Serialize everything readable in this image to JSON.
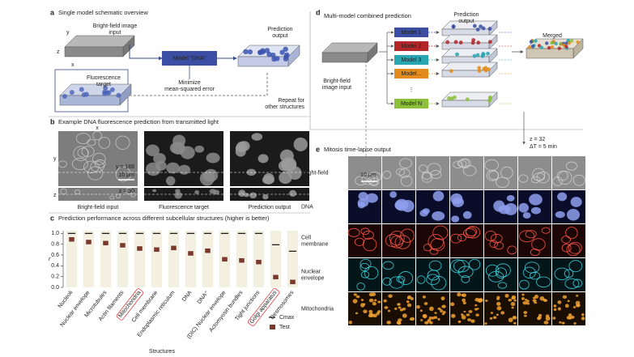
{
  "panel_a": {
    "letter": "a",
    "title": "Single model schematic overview",
    "axis_y": "y",
    "axis_z": "z",
    "axis_x": "x",
    "bright_field_label": [
      "Bright-field image",
      "input"
    ],
    "fluorescence_label": [
      "Fluorescence",
      "target"
    ],
    "model": "Model “DNA”",
    "loss": [
      "Minimize",
      "mean-squared error"
    ],
    "prediction_label": [
      "Prediction",
      "output"
    ],
    "repeat": [
      "Repeat for",
      "other structures"
    ]
  },
  "panel_b": {
    "letter": "b",
    "title": "Example DNA fluorescence prediction from transmitted light",
    "axis_x": "x",
    "axis_y": "y",
    "axis_z": "z",
    "y_slice": "y = 168",
    "scale": "10 μm",
    "z_slice": "z = 30",
    "captions": [
      "Bright-field input",
      "Fluorescence target",
      "Prediction output"
    ]
  },
  "panel_c": {
    "letter": "c"
  },
  "chart_data": {
    "type": "box",
    "title": "Prediction performance across different subcellular structures (higher is better)",
    "x_label": "Structures",
    "y_label": "r",
    "categories": [
      "Nucleoli",
      "Nuclear envelope",
      "Microtubules",
      "Actin filaments",
      "Mitochondria",
      "Cell membrane",
      "Endoplasmic reticulum",
      "DNA",
      "DNA⁺",
      "(DIC) Nuclear envelope",
      "Actomyosin bundles",
      "Tight junctions",
      "Golgi apparatus",
      "Desmosomes"
    ],
    "series": [
      {
        "name": "Cmax",
        "color": "#111111",
        "values": [
          1.0,
          1.0,
          1.0,
          1.0,
          1.0,
          1.0,
          1.0,
          1.0,
          1.0,
          1.0,
          1.0,
          1.0,
          0.79,
          0.67
        ]
      },
      {
        "name": "Test",
        "color": "#7b3a2c",
        "values": [
          0.89,
          0.84,
          0.82,
          0.78,
          0.72,
          0.7,
          0.73,
          0.63,
          0.68,
          0.52,
          0.5,
          0.47,
          0.19,
          0.1
        ]
      }
    ],
    "ylim": [
      0,
      1.05
    ],
    "yticks": [
      {
        "value": 0,
        "label": "0.0"
      },
      {
        "value": 0.2,
        "label": "0.2"
      },
      {
        "value": 0.4,
        "label": "0.4"
      },
      {
        "value": 0.6,
        "label": "0.6"
      },
      {
        "value": 0.8,
        "label": "0.8"
      },
      {
        "value": 1,
        "label": "1.0"
      }
    ],
    "highlight": [
      4,
      12
    ]
  },
  "panel_d": {
    "letter": "d",
    "title": "Multi-model combined prediction",
    "input_label": [
      "Bright-field",
      "image input"
    ],
    "output_label": [
      "Prediction",
      "output"
    ],
    "models": [
      {
        "name": "Model 1",
        "color": "#3b4ea3"
      },
      {
        "name": "Model 2",
        "color": "#b3262a"
      },
      {
        "name": "Model 3",
        "color": "#27a5b0"
      },
      {
        "name": "Model...",
        "color": "#e38b1c"
      },
      {
        "name": "Model N",
        "color": "#8cbf3a"
      }
    ],
    "ellipsis": "⋮",
    "merged": "Merged"
  },
  "panel_e": {
    "letter": "e",
    "title": "Mitosis time-lapse output",
    "z": "z = 32",
    "dt": "ΔT = 5 min",
    "scale": "10 μm",
    "rows": [
      {
        "label": [
          "Bright-field"
        ],
        "background": "#8d8d8d",
        "color": "#d0d0d0"
      },
      {
        "label": [
          "DNA"
        ],
        "background": "#0a0d2a",
        "color": "#8fa0ee"
      },
      {
        "label": [
          "Cell",
          "membrane"
        ],
        "background": "#1c0505",
        "color": "#ff5a48"
      },
      {
        "label": [
          "Nuclear",
          "envelope"
        ],
        "background": "#021519",
        "color": "#3fd6e0"
      },
      {
        "label": [
          "Mitochondria"
        ],
        "background": "#1a0e02",
        "color": "#f0a030"
      }
    ]
  }
}
